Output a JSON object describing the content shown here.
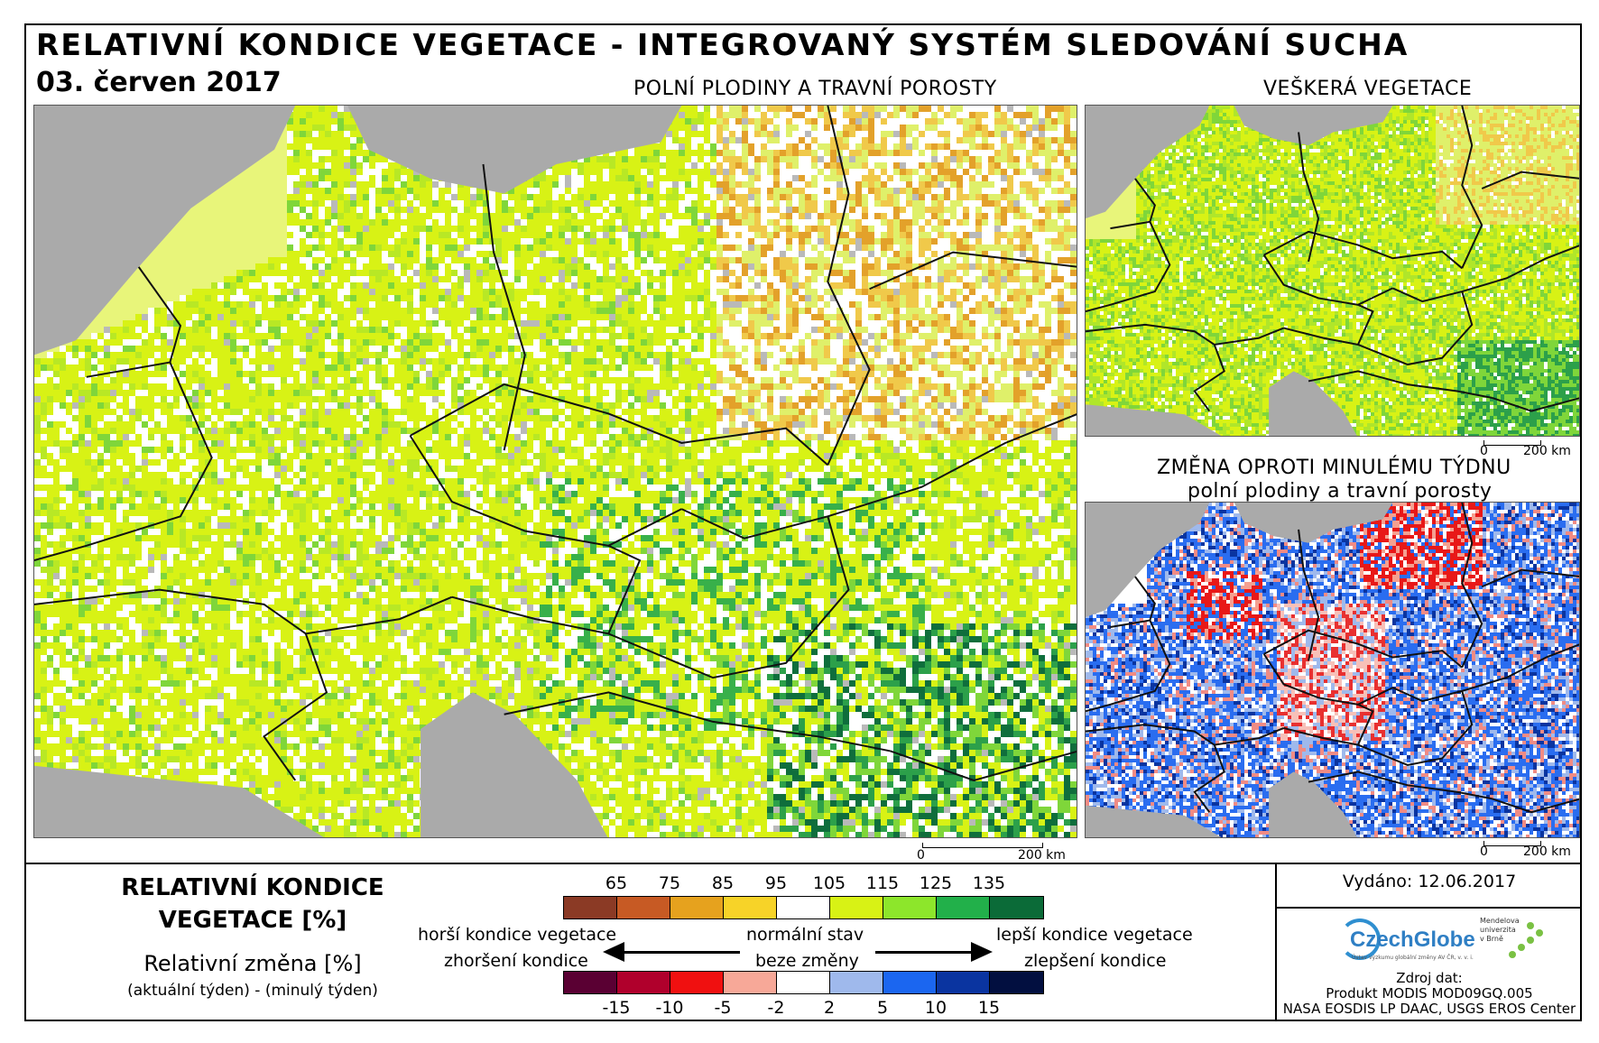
{
  "header": {
    "title": "RELATIVNÍ KONDICE VEGETACE - INTEGROVANÝ SYSTÉM SLEDOVÁNÍ SUCHA",
    "date": "03. červen 2017"
  },
  "maps": {
    "main": {
      "label": "POLNÍ PLODINY A TRAVNÍ POROSTY"
    },
    "all_vegetation": {
      "label": "VEŠKERÁ VEGETACE"
    },
    "weekly_change": {
      "label_line1": "ZMĚNA OPROTI MINULÉMU TÝDNU",
      "label_line2": "polní plodiny a travní porosty"
    }
  },
  "scalebars": {
    "main": {
      "start": "0",
      "end": "200 km"
    },
    "all_vegetation": {
      "start": "0",
      "end": "200 km"
    },
    "weekly_change": {
      "start": "0",
      "end": "200 km"
    }
  },
  "legend": {
    "title_line1": "RELATIVNÍ KONDICE",
    "title_line2": "VEGETACE [%]",
    "change_title": "Relativní změna [%]",
    "change_formula": "(aktuální týden) - (minulý týden)",
    "condition_ticks": [
      "65",
      "75",
      "85",
      "95",
      "105",
      "115",
      "125",
      "135"
    ],
    "condition_colors": [
      "#8b3a25",
      "#c75a24",
      "#e6a21e",
      "#f7d328",
      "#ffffff",
      "#d8f215",
      "#8de62b",
      "#22b04a",
      "#0b6b38"
    ],
    "change_ticks": [
      "-15",
      "-10",
      "-5",
      "-2",
      "2",
      "5",
      "10",
      "15"
    ],
    "change_colors": [
      "#5a0033",
      "#b0002c",
      "#f01010",
      "#f7a898",
      "#ffffff",
      "#9fb9ec",
      "#1b66f0",
      "#0a34a0",
      "#020f40"
    ],
    "worse_condition": "horší kondice vegetace",
    "normal_state": "normální stav",
    "better_condition": "lepší kondice vegetace",
    "deterioration": "zhoršení kondice",
    "no_change": "beze změny",
    "improvement": "zlepšení kondice"
  },
  "info": {
    "issued": "Vydáno: 12.06.2017",
    "czechglobe_logo": "CzechGlobe",
    "czechglobe_tagline": "Ústav výzkumu globální změny AV ČR, v. v. i.",
    "mendel_logo": "Mendelova univerzita v Brně",
    "source_label": "Zdroj dat:",
    "source_line1": "Produkt MODIS MOD09GQ.005",
    "source_line2": "NASA EOSDIS LP DAAC, USGS EROS Center"
  }
}
